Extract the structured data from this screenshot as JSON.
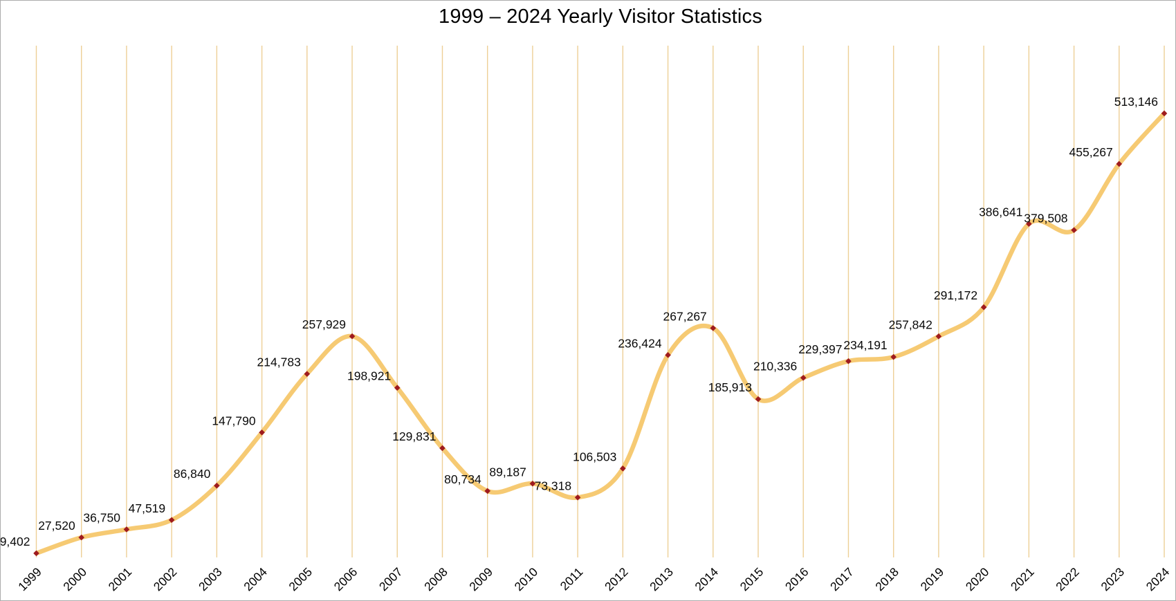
{
  "chart_data": {
    "type": "line",
    "title": "1999 – 2024 Yearly Visitor Statistics",
    "xlabel": "",
    "ylabel": "",
    "legend": "none",
    "grid": "vertical-only",
    "x_ticks": [
      "1999",
      "2000",
      "2001",
      "2002",
      "2003",
      "2004",
      "2005",
      "2006",
      "2007",
      "2008",
      "2009",
      "2010",
      "2011",
      "2012",
      "2013",
      "2014",
      "2015",
      "2016",
      "2017",
      "2018",
      "2019",
      "2020",
      "2021",
      "2022",
      "2023",
      "2024"
    ],
    "values": [
      9402,
      27520,
      36750,
      47519,
      86840,
      147790,
      214783,
      257929,
      198921,
      129831,
      80734,
      89187,
      73318,
      106503,
      236424,
      267267,
      185913,
      210336,
      229397,
      234191,
      257842,
      291172,
      386641,
      379508,
      455267,
      513146
    ],
    "value_labels": [
      "9,402",
      "27,520",
      "36,750",
      "47,519",
      "86,840",
      "147,790",
      "214,783",
      "257,929",
      "198,921",
      "129,831",
      "80,734",
      "89,187",
      "73,318",
      "106,503",
      "236,424",
      "267,267",
      "185,913",
      "210,336",
      "229,397",
      "234,191",
      "257,842",
      "291,172",
      "386,641",
      "379,508",
      "455,267",
      "513,146"
    ],
    "ylim": [
      0,
      590000
    ],
    "y_axis_labels_visible": false,
    "curve": "smooth",
    "colors": {
      "line": "#F6CA73",
      "marker": "#9E1B1F",
      "gridline": "#EDCF96",
      "label_text": "#0A0A0A",
      "tick_text": "#000000",
      "title_text": "#000000",
      "background": "#FFFFFF",
      "border": "#ABABAB"
    }
  }
}
